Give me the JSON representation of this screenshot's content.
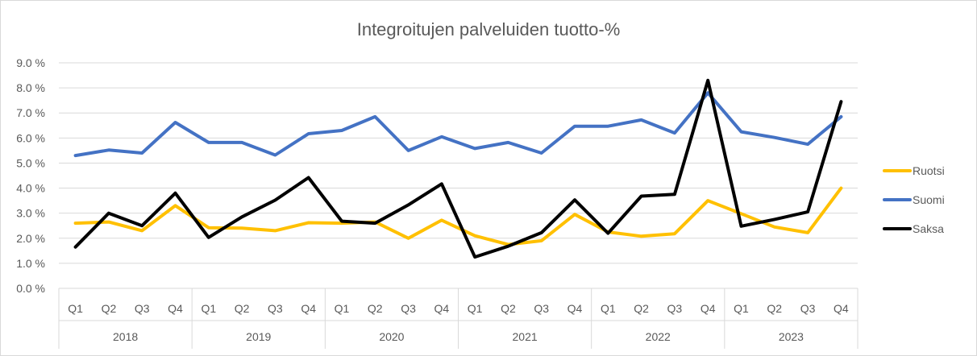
{
  "chart_data": {
    "type": "line",
    "title": "Integroitujen palveluiden tuotto-%",
    "xlabel": "",
    "ylabel": "",
    "ylim": [
      0,
      9
    ],
    "yticks": [
      "0.0 %",
      "1.0 %",
      "2.0 %",
      "3.0 %",
      "4.0 %",
      "5.0 %",
      "6.0 %",
      "7.0 %",
      "8.0 %",
      "9.0 %"
    ],
    "years": [
      "2018",
      "2019",
      "2020",
      "2021",
      "2022",
      "2023"
    ],
    "quarters": [
      "Q1",
      "Q2",
      "Q3",
      "Q4"
    ],
    "legend_position": "right",
    "series": [
      {
        "name": "Ruotsi",
        "color": "#FFC000",
        "values": [
          2.6,
          2.65,
          2.3,
          3.3,
          2.42,
          2.4,
          2.3,
          2.62,
          2.6,
          2.65,
          2.0,
          2.72,
          2.1,
          1.75,
          1.9,
          2.95,
          2.25,
          2.08,
          2.18,
          3.5,
          2.98,
          2.45,
          2.22,
          4.0
        ]
      },
      {
        "name": "Suomi",
        "color": "#4472C4",
        "values": [
          5.3,
          5.52,
          5.4,
          6.62,
          5.82,
          5.82,
          5.32,
          6.17,
          6.3,
          6.85,
          5.5,
          6.05,
          5.58,
          5.82,
          5.4,
          6.47,
          6.47,
          6.72,
          6.2,
          7.8,
          6.25,
          6.02,
          5.75,
          6.85
        ]
      },
      {
        "name": "Saksa",
        "color": "#000000",
        "values": [
          1.65,
          3.0,
          2.5,
          3.8,
          2.03,
          2.85,
          3.52,
          4.42,
          2.68,
          2.6,
          3.33,
          4.17,
          1.25,
          1.68,
          2.22,
          3.53,
          2.2,
          3.68,
          3.75,
          8.3,
          2.48,
          2.75,
          3.05,
          7.45
        ]
      }
    ]
  }
}
